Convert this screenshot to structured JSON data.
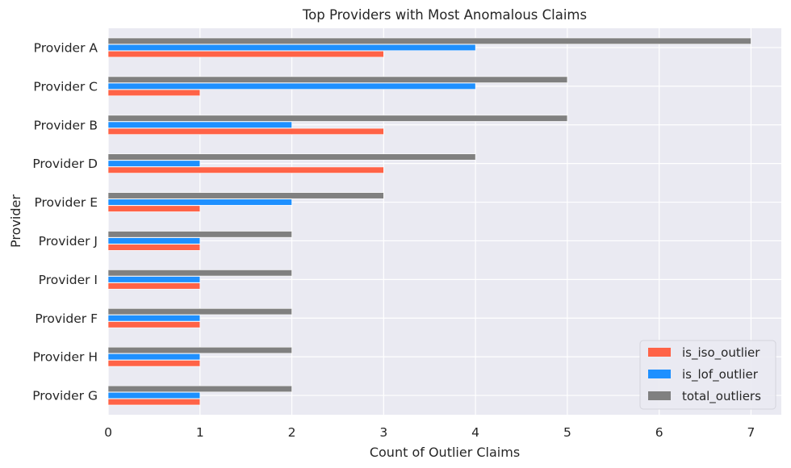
{
  "chart_data": {
    "type": "bar",
    "orientation": "horizontal",
    "title": "Top Providers with Most Anomalous Claims",
    "xlabel": "Count of Outlier Claims",
    "ylabel": "Provider",
    "categories": [
      "Provider A",
      "Provider C",
      "Provider B",
      "Provider D",
      "Provider E",
      "Provider J",
      "Provider I",
      "Provider F",
      "Provider H",
      "Provider G"
    ],
    "series": [
      {
        "name": "is_iso_outlier",
        "color": "#ff6347",
        "values": [
          3,
          1,
          3,
          3,
          1,
          1,
          1,
          1,
          1,
          1
        ]
      },
      {
        "name": "is_lof_outlier",
        "color": "#1e90ff",
        "values": [
          4,
          4,
          2,
          1,
          2,
          1,
          1,
          1,
          1,
          1
        ]
      },
      {
        "name": "total_outliers",
        "color": "#808080",
        "values": [
          7,
          5,
          5,
          4,
          3,
          2,
          2,
          2,
          2,
          2
        ]
      }
    ],
    "xlim": [
      0,
      7.33
    ],
    "xticks": [
      0,
      1,
      2,
      3,
      4,
      5,
      6,
      7
    ],
    "grid": true,
    "legend_position": "bottom-right"
  }
}
